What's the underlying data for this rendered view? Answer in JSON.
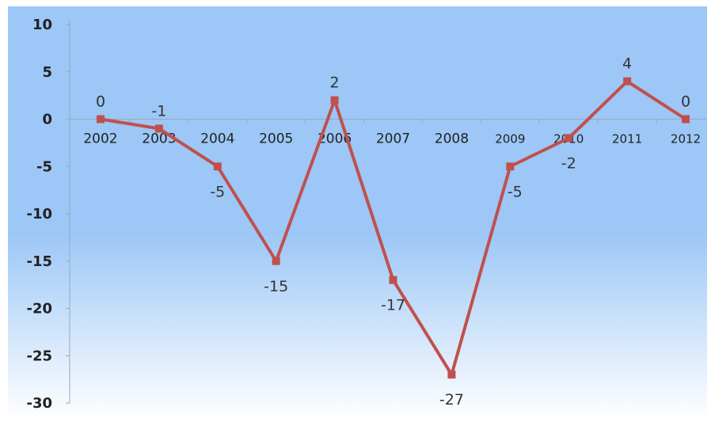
{
  "chart_data": {
    "type": "line",
    "title": "",
    "xlabel": "",
    "ylabel": "",
    "categories": [
      "2002",
      "2003",
      "2004",
      "2005",
      "2006",
      "2007",
      "2008",
      "2009",
      "2010",
      "2011",
      "2012"
    ],
    "series": [
      {
        "values": [
          0,
          -1,
          -5,
          -15,
          2,
          -17,
          -27,
          -5,
          -2,
          4,
          0
        ]
      }
    ],
    "data_labels": [
      "0",
      "-1",
      "-5",
      "-15",
      "2",
      "-17",
      "-27",
      "-5",
      "-2",
      "4",
      "0"
    ],
    "ylim": [
      -30,
      10
    ],
    "yticks": [
      10,
      5,
      0,
      -5,
      -10,
      -15,
      -20,
      -25,
      -30
    ],
    "ytick_labels": [
      "10",
      "5",
      "0",
      "-5",
      "-10",
      "-15",
      "-20",
      "-25",
      "-30"
    ],
    "grid": false,
    "legend": "none",
    "colors": {
      "line": "#c0504d",
      "background_top": "#9cc7f6",
      "background_bottom": "#ffffff"
    }
  }
}
